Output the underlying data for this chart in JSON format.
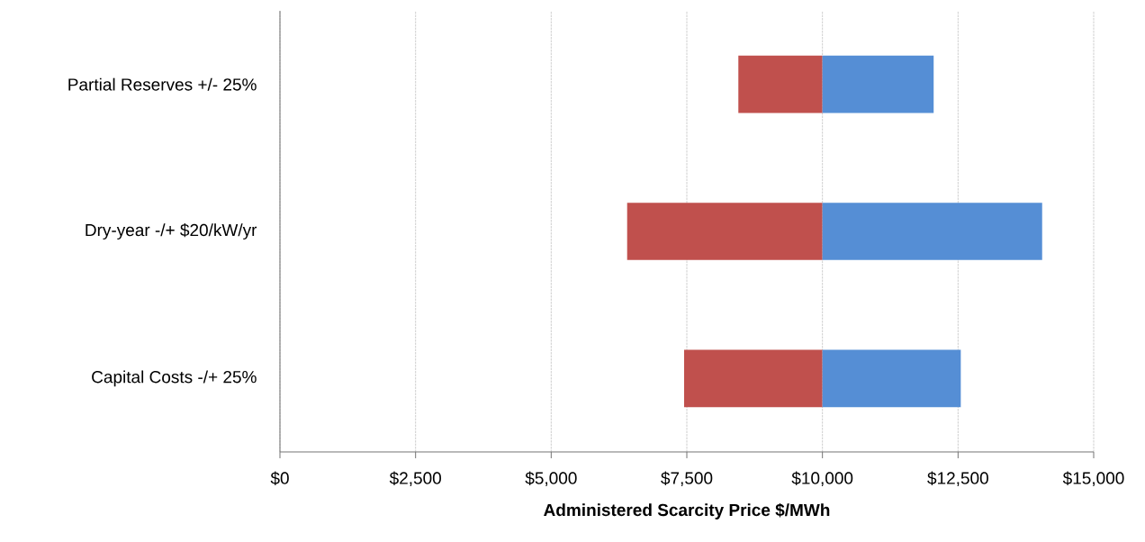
{
  "chart_data": {
    "type": "bar",
    "orientation": "horizontal",
    "categories": [
      "Partial Reserves  +/- 25%",
      "Dry-year  -/+ $20/kW/yr",
      "Capital Costs -/+ 25%"
    ],
    "series": [
      {
        "color": "#c0504d",
        "base": [
          8450,
          6400,
          7450
        ],
        "values": [
          1550,
          3600,
          2550
        ]
      },
      {
        "color": "#558ed5",
        "base": [
          10000,
          10000,
          10000
        ],
        "values": [
          2050,
          4050,
          2550
        ]
      }
    ],
    "xlim": [
      0,
      15000
    ],
    "xticks": [
      {
        "value": 0,
        "label": "$0"
      },
      {
        "value": 2500,
        "label": "$2,500"
      },
      {
        "value": 5000,
        "label": "$5,000"
      },
      {
        "value": 7500,
        "label": "$7,500"
      },
      {
        "value": 10000,
        "label": "$10,000"
      },
      {
        "value": 12500,
        "label": "$12,500"
      },
      {
        "value": 15000,
        "label": "$15,000"
      }
    ],
    "xlabel": "Administered Scarcity Price $/MWh",
    "grid": "x"
  }
}
